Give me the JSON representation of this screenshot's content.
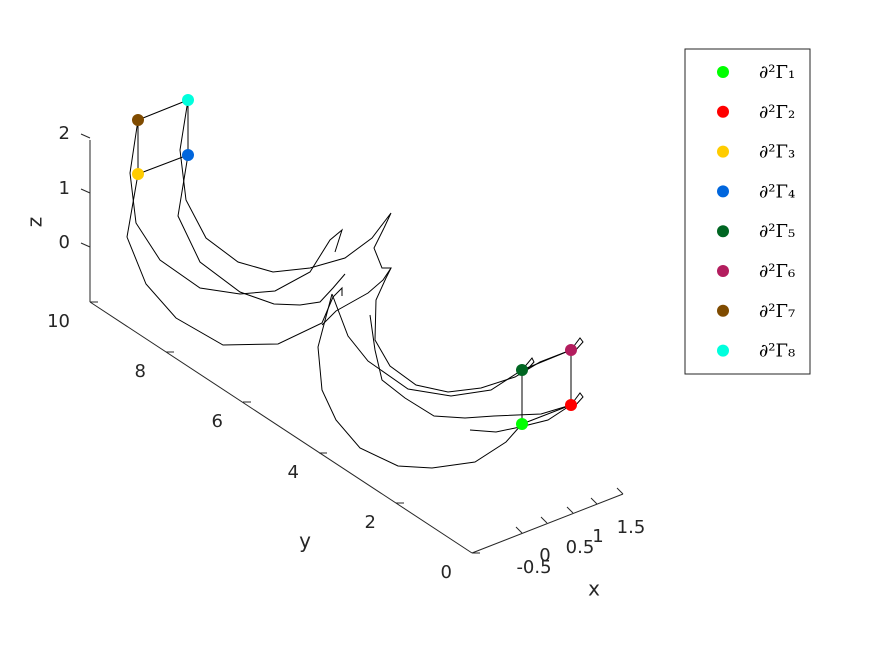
{
  "chart_data": {
    "type": "line3d",
    "title": "",
    "xlabel": "x",
    "ylabel": "y",
    "zlabel": "z",
    "x_ticks": [
      "-0.5",
      "0",
      "0.5",
      "1",
      "1.5"
    ],
    "y_ticks": [
      "0",
      "2",
      "4",
      "6",
      "8",
      "10"
    ],
    "z_ticks": [
      "0",
      "1",
      "2"
    ],
    "xlim": [
      -1,
      2
    ],
    "ylim": [
      0,
      10
    ],
    "zlim": [
      -1,
      2
    ],
    "grid": false,
    "wire_color": "#000000",
    "legend_position": "top-right",
    "legend": [
      {
        "label": "∂²Γ₁",
        "color": "#00ff00"
      },
      {
        "label": "∂²Γ₂",
        "color": "#ff0000"
      },
      {
        "label": "∂²Γ₃",
        "color": "#ffcc00"
      },
      {
        "label": "∂²Γ₄",
        "color": "#0066dd"
      },
      {
        "label": "∂²Γ₅",
        "color": "#006622"
      },
      {
        "label": "∂²Γ₆",
        "color": "#b31d5e"
      },
      {
        "label": "∂²Γ₇",
        "color": "#7f4b00"
      },
      {
        "label": "∂²Γ₈",
        "color": "#00ffdd"
      }
    ]
  }
}
